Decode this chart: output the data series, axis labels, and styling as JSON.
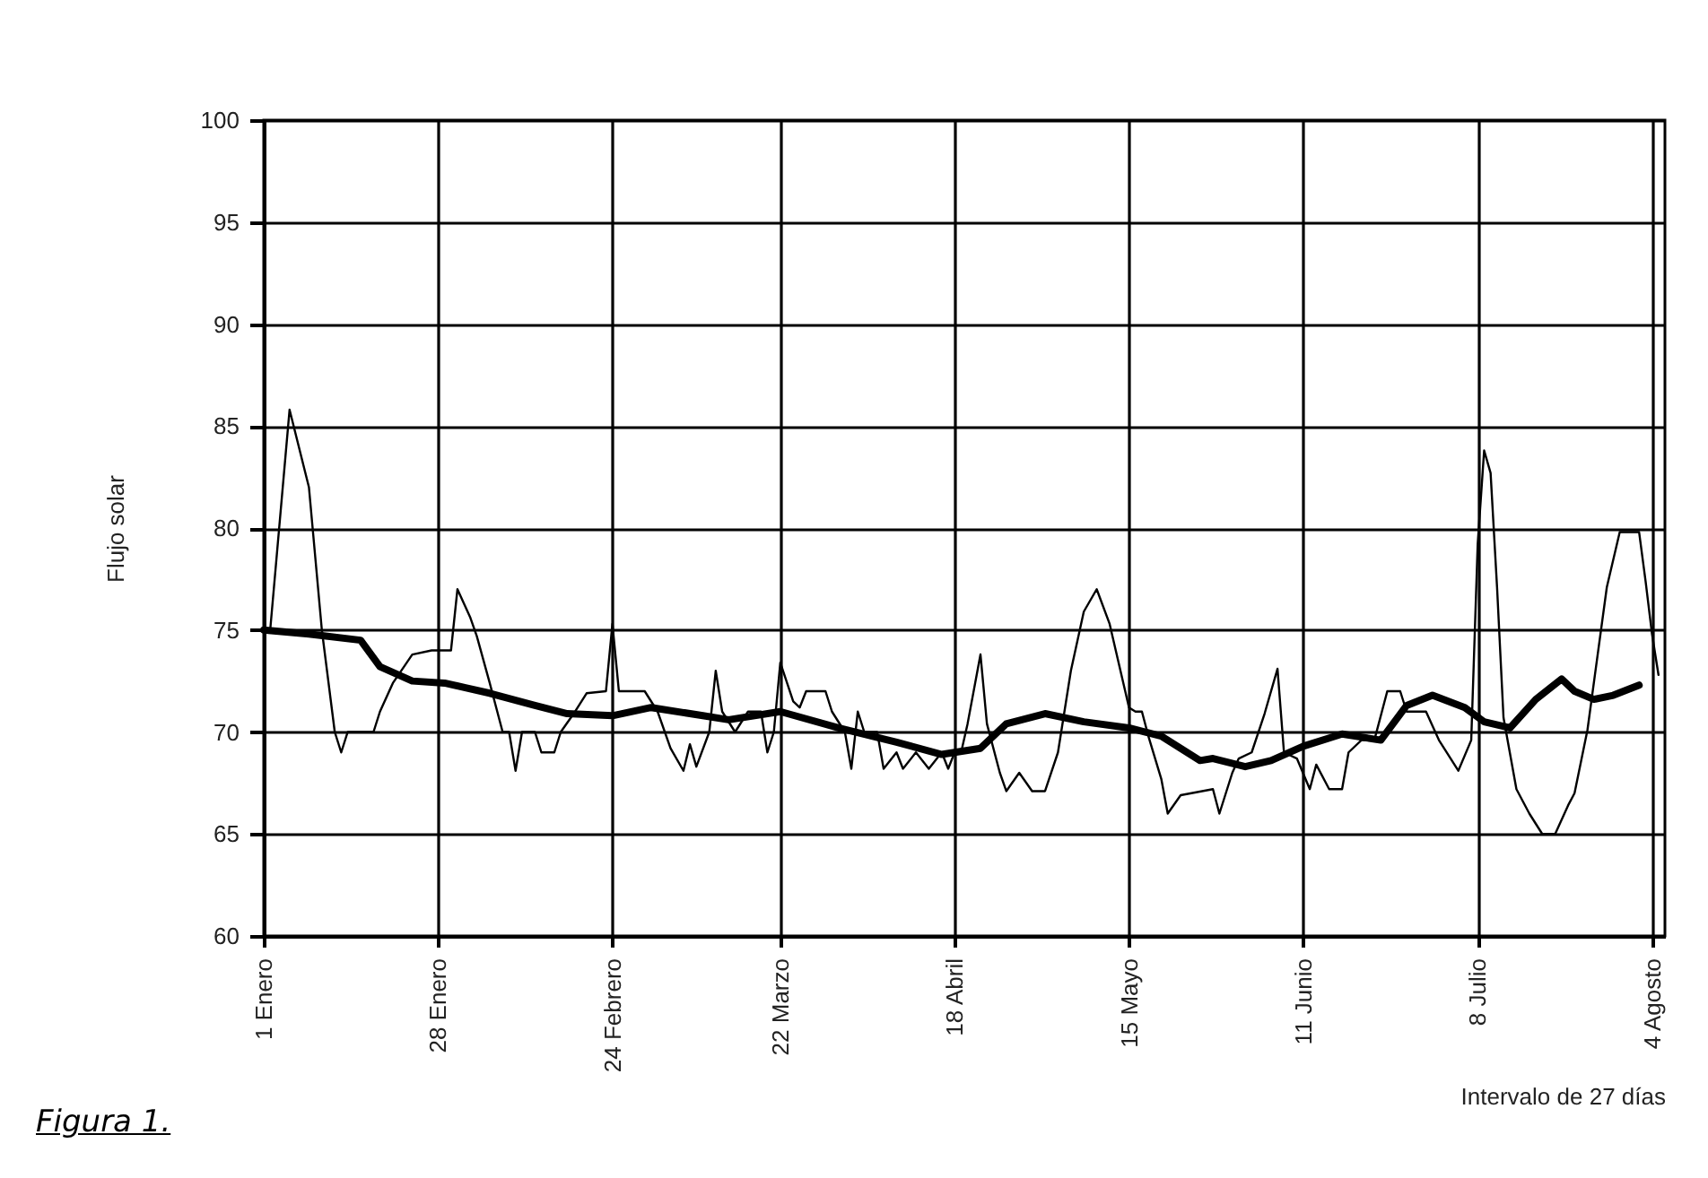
{
  "chart_data": {
    "type": "line",
    "ylabel": "Flujo solar",
    "xlabel": "Intervalo de 27 días",
    "annotations": [
      "Figura 1."
    ],
    "xlim": [
      "--01-01",
      "--08-06"
    ],
    "ylim": [
      60,
      100
    ],
    "yticks": [
      60,
      65,
      70,
      75,
      80,
      85,
      90,
      95,
      100
    ],
    "xticks": [
      {
        "value": "--01-01",
        "label": "1 Enero"
      },
      {
        "value": "--01-28",
        "label": "28 Enero"
      },
      {
        "value": "--02-24",
        "label": "24 Febrero"
      },
      {
        "value": "--03-22",
        "label": "22 Marzo"
      },
      {
        "value": "--04-18",
        "label": "18 Abril"
      },
      {
        "value": "--05-15",
        "label": "15 Mayo"
      },
      {
        "value": "--06-11",
        "label": "11 Junio"
      },
      {
        "value": "--07-08",
        "label": "8 Julio"
      },
      {
        "value": "--08-04",
        "label": "4 Agosto"
      }
    ],
    "grid": true,
    "marker": "none",
    "line_style": "solid",
    "series": [
      {
        "color": "#000000",
        "x": [
          "--01-01",
          "--01-02",
          "--01-05",
          "--01-08",
          "--01-10",
          "--01-12",
          "--01-13",
          "--01-14",
          "--01-18",
          "--01-19",
          "--01-21",
          "--01-24",
          "--01-27",
          "--01-30",
          "--01-31",
          "--02-02",
          "--02-03",
          "--02-05",
          "--02-07",
          "--02-08",
          "--02-09",
          "--02-10",
          "--02-12",
          "--02-13",
          "--02-15",
          "--02-16",
          "--02-18",
          "--02-20",
          "--02-23",
          "--02-24",
          "--02-25",
          "--02-28",
          "--03-01",
          "--03-03",
          "--03-05",
          "--03-07",
          "--03-08",
          "--03-09",
          "--03-11",
          "--03-12",
          "--03-13",
          "--03-15",
          "--03-17",
          "--03-19",
          "--03-20",
          "--03-21",
          "--03-22",
          "--03-24",
          "--03-25",
          "--03-26",
          "--03-29",
          "--03-30",
          "--04-01",
          "--04-02",
          "--04-03",
          "--04-04",
          "--04-06",
          "--04-07",
          "--04-09",
          "--04-10",
          "--04-12",
          "--04-14",
          "--04-16",
          "--04-17",
          "--04-18",
          "--04-19",
          "--04-20",
          "--04-22",
          "--04-23",
          "--04-25",
          "--04-26",
          "--04-28",
          "--04-30",
          "--05-02",
          "--05-04",
          "--05-06",
          "--05-08",
          "--05-10",
          "--05-12",
          "--05-15",
          "--05-16",
          "--05-17",
          "--05-18",
          "--05-20",
          "--05-21",
          "--05-23",
          "--05-28",
          "--05-29",
          "--05-31",
          "--06-01",
          "--06-03",
          "--06-05",
          "--06-07",
          "--06-08",
          "--06-10",
          "--06-12",
          "--06-13",
          "--06-15",
          "--06-17",
          "--06-18",
          "--06-20",
          "--06-22",
          "--06-24",
          "--06-26",
          "--06-27",
          "--06-30",
          "--07-02",
          "--07-05",
          "--07-07",
          "--07-08",
          "--07-09",
          "--07-10",
          "--07-11",
          "--07-12",
          "--07-14",
          "--07-16",
          "--07-18",
          "--07-20",
          "--07-22",
          "--07-23",
          "--07-25",
          "--07-28",
          "--07-30",
          "--08-02",
          "--08-03",
          "--08-04",
          "--08-05"
        ],
        "values": [
          75,
          75,
          85.8,
          82,
          75,
          70,
          69,
          70,
          70,
          71,
          72.4,
          73.8,
          74,
          74,
          77,
          75.6,
          74.7,
          72.4,
          70,
          70,
          68.1,
          70,
          70,
          69,
          69,
          70,
          70.9,
          71.9,
          72,
          75.3,
          72,
          72,
          72,
          71,
          69.2,
          68.1,
          69.4,
          68.3,
          70,
          73,
          71,
          70,
          71,
          71,
          69,
          70,
          73.4,
          71.5,
          71.2,
          72,
          72,
          71,
          70,
          68.2,
          71,
          70,
          70,
          68.2,
          69,
          68.2,
          69,
          68.2,
          69,
          68.2,
          69,
          69,
          70.4,
          73.8,
          70.4,
          68,
          67.1,
          68,
          67.1,
          67.1,
          69,
          73,
          75.9,
          77,
          75.3,
          71.2,
          71,
          71,
          69.8,
          67.7,
          66,
          66.9,
          67.2,
          66,
          68,
          68.7,
          69,
          70.9,
          73.1,
          69,
          68.7,
          67.2,
          68.4,
          67.2,
          67.2,
          69,
          69.6,
          69.6,
          72,
          72,
          71,
          71,
          69.6,
          68.1,
          69.6,
          79.2,
          83.8,
          82.7,
          77.1,
          70.7,
          67.2,
          66,
          65,
          65,
          66.4,
          67,
          70.1,
          77.1,
          79.8,
          79.8,
          77.4,
          74.8,
          72.8
        ]
      },
      {
        "color": "#000000",
        "x": [
          "--01-01",
          "--01-08",
          "--01-16",
          "--01-19",
          "--01-24",
          "--01-29",
          "--02-05",
          "--02-12",
          "--02-17",
          "--02-24",
          "--03-02",
          "--03-10",
          "--03-14",
          "--03-22",
          "--03-31",
          "--04-09",
          "--04-16",
          "--04-22",
          "--04-26",
          "--05-02",
          "--05-08",
          "--05-15",
          "--05-20",
          "--05-26",
          "--05-28",
          "--06-02",
          "--06-06",
          "--06-11",
          "--06-17",
          "--06-23",
          "--06-27",
          "--07-01",
          "--07-06",
          "--07-09",
          "--07-13",
          "--07-17",
          "--07-21",
          "--07-23",
          "--07-26",
          "--07-29",
          "--08-02"
        ],
        "values": [
          75,
          74.8,
          74.5,
          73.2,
          72.5,
          72.4,
          71.9,
          71.3,
          70.9,
          70.8,
          71.2,
          70.8,
          70.6,
          71,
          70.2,
          69.5,
          68.9,
          69.2,
          70.4,
          70.9,
          70.5,
          70.2,
          69.8,
          68.6,
          68.7,
          68.3,
          68.6,
          69.3,
          69.9,
          69.6,
          71.3,
          71.8,
          71.2,
          70.5,
          70.2,
          71.6,
          72.6,
          72,
          71.6,
          71.8,
          72.3
        ]
      }
    ]
  }
}
